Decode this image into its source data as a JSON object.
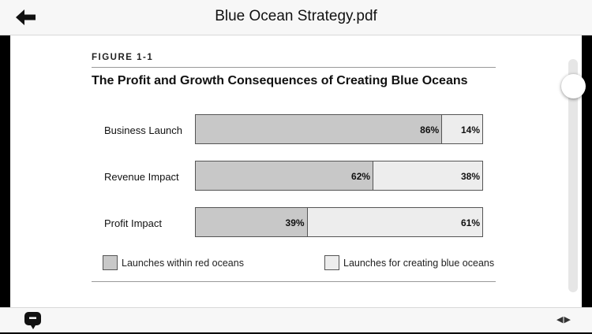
{
  "header": {
    "title": "Blue Ocean Strategy.pdf",
    "back_icon": "back-arrow-icon"
  },
  "figure": {
    "label": "FIGURE 1-1",
    "title": "The Profit and Growth Consequences of Creating Blue Oceans",
    "rows": [
      {
        "label": "Business Launch",
        "red_pct": 86,
        "red_text": "86%",
        "blue_text": "14%"
      },
      {
        "label": "Revenue Impact",
        "red_pct": 62,
        "red_text": "62%",
        "blue_text": "38%"
      },
      {
        "label": "Profit Impact",
        "red_pct": 39,
        "red_text": "39%",
        "blue_text": "61%"
      }
    ],
    "legend": {
      "red": "Launches within red oceans",
      "blue": "Launches for creating blue oceans"
    },
    "colors": {
      "red_ocean": "#c8c8c8",
      "blue_ocean": "#ededed"
    }
  },
  "chart_data": {
    "type": "bar",
    "stacked": true,
    "orientation": "horizontal",
    "title": "The Profit and Growth Consequences of Creating Blue Oceans",
    "categories": [
      "Business Launch",
      "Revenue Impact",
      "Profit Impact"
    ],
    "series": [
      {
        "name": "Launches within red oceans",
        "values": [
          86,
          62,
          39
        ]
      },
      {
        "name": "Launches for creating blue oceans",
        "values": [
          14,
          38,
          61
        ]
      }
    ],
    "xlim": [
      0,
      100
    ],
    "legend_position": "bottom"
  },
  "scroll": {
    "position_fraction": 0.07
  },
  "footer": {
    "chat_icon": "chat-icon",
    "page_arrows": "◀ ▶"
  }
}
